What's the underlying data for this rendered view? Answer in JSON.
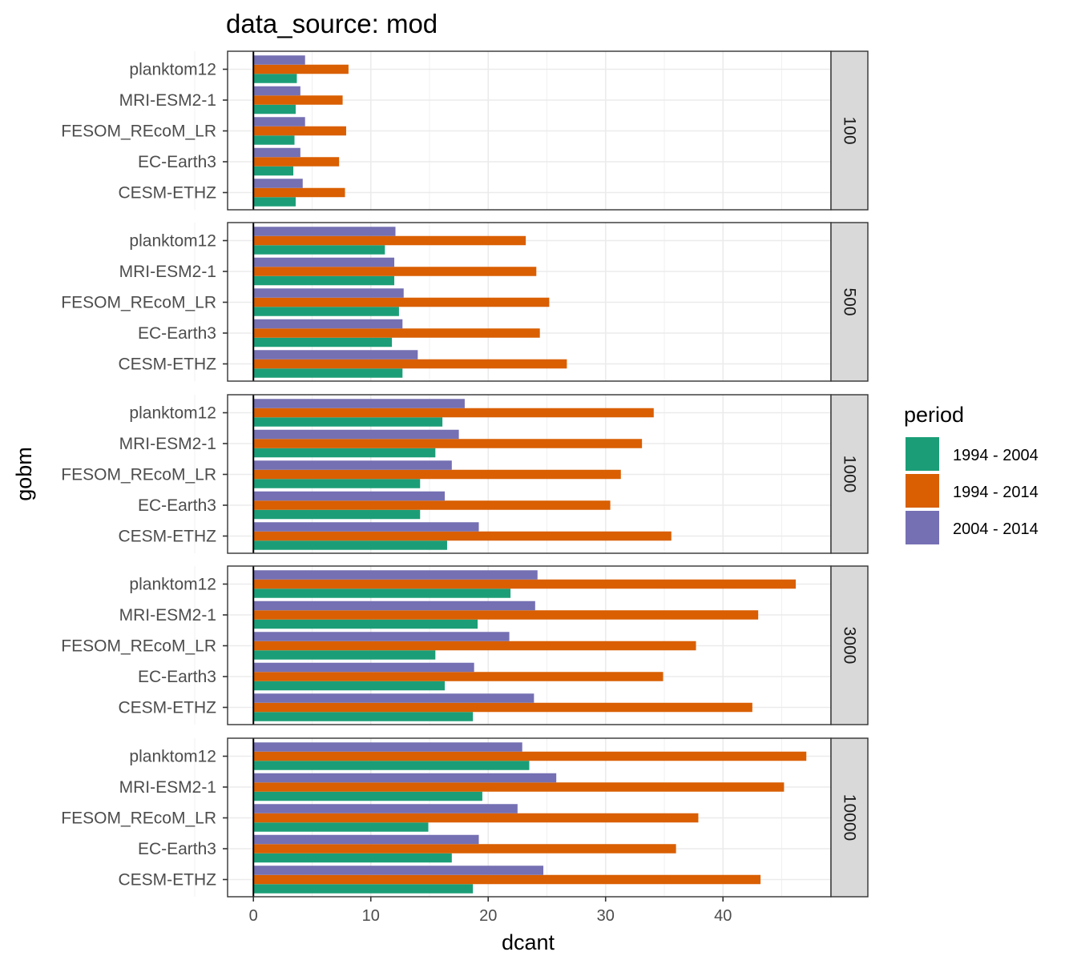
{
  "chart_data": {
    "type": "bar",
    "orientation": "horizontal",
    "title": "data_source: mod",
    "xlabel": "dcant",
    "ylabel": "gobm",
    "xlim": [
      -2.2,
      49.2
    ],
    "xticks": [
      0,
      10,
      20,
      30,
      40
    ],
    "grid": true,
    "legend": {
      "title": "period",
      "position": "right",
      "entries": [
        "1994 - 2004",
        "1994 - 2014",
        "2004 - 2014"
      ]
    },
    "colors": {
      "1994 - 2004": "#1B9E77",
      "1994 - 2014": "#D95F02",
      "2004 - 2014": "#7570B3"
    },
    "categories": [
      "planktom12",
      "MRI-ESM2-1",
      "FESOM_REcoM_LR",
      "EC-Earth3",
      "CESM-ETHZ"
    ],
    "facets": [
      {
        "label": "100",
        "series": [
          {
            "name": "1994 - 2004",
            "values": [
              3.7,
              3.6,
              3.5,
              3.4,
              3.6
            ]
          },
          {
            "name": "1994 - 2014",
            "values": [
              8.1,
              7.6,
              7.9,
              7.3,
              7.8
            ]
          },
          {
            "name": "2004 - 2014",
            "values": [
              4.4,
              4.0,
              4.4,
              4.0,
              4.2
            ]
          }
        ]
      },
      {
        "label": "500",
        "series": [
          {
            "name": "1994 - 2004",
            "values": [
              11.2,
              12.0,
              12.4,
              11.8,
              12.7
            ]
          },
          {
            "name": "1994 - 2014",
            "values": [
              23.2,
              24.1,
              25.2,
              24.4,
              26.7
            ]
          },
          {
            "name": "2004 - 2014",
            "values": [
              12.1,
              12.0,
              12.8,
              12.7,
              14.0
            ]
          }
        ]
      },
      {
        "label": "1000",
        "series": [
          {
            "name": "1994 - 2004",
            "values": [
              16.1,
              15.5,
              14.2,
              14.2,
              16.5
            ]
          },
          {
            "name": "1994 - 2014",
            "values": [
              34.1,
              33.1,
              31.3,
              30.4,
              35.6
            ]
          },
          {
            "name": "2004 - 2014",
            "values": [
              18.0,
              17.5,
              16.9,
              16.3,
              19.2
            ]
          }
        ]
      },
      {
        "label": "3000",
        "series": [
          {
            "name": "1994 - 2004",
            "values": [
              21.9,
              19.1,
              15.5,
              16.3,
              18.7
            ]
          },
          {
            "name": "1994 - 2014",
            "values": [
              46.2,
              43.0,
              37.7,
              34.9,
              42.5
            ]
          },
          {
            "name": "2004 - 2014",
            "values": [
              24.2,
              24.0,
              21.8,
              18.8,
              23.9
            ]
          }
        ]
      },
      {
        "label": "10000",
        "series": [
          {
            "name": "1994 - 2004",
            "values": [
              23.5,
              19.5,
              14.9,
              16.9,
              18.7
            ]
          },
          {
            "name": "1994 - 2014",
            "values": [
              47.1,
              45.2,
              37.9,
              36.0,
              43.2
            ]
          },
          {
            "name": "2004 - 2014",
            "values": [
              22.9,
              25.8,
              22.5,
              19.2,
              24.7
            ]
          }
        ]
      }
    ]
  }
}
